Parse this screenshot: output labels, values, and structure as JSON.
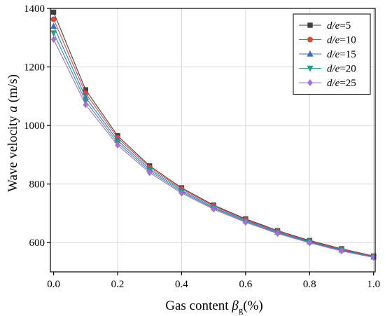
{
  "chart_data": {
    "type": "line",
    "xlabel": {
      "prefix": "Gas content ",
      "symbol": "β",
      "subscript": "g",
      "suffix": "(%)"
    },
    "ylabel": {
      "prefix": "Wave velocity ",
      "symbol": "a",
      "suffix": " (m/s)"
    },
    "xlim": [
      -0.01,
      1.005
    ],
    "ylim": [
      500,
      1400
    ],
    "xticks": [
      0.0,
      0.2,
      0.4,
      0.6,
      0.8,
      1.0
    ],
    "xtick_labels": [
      "0.0",
      "0.2",
      "0.4",
      "0.6",
      "0.8",
      "1.0"
    ],
    "yticks": [
      600,
      800,
      1000,
      1200,
      1400
    ],
    "ytick_labels": [
      "600",
      "800",
      "1000",
      "1200",
      "1400"
    ],
    "grid": true,
    "legend_position": "top-right",
    "x": [
      0.0,
      0.1,
      0.2,
      0.3,
      0.4,
      0.5,
      0.6,
      0.7,
      0.8,
      0.9,
      1.0
    ],
    "series": [
      {
        "name": {
          "var": "d/e",
          "value": "=5"
        },
        "color": "#404040",
        "marker": "square",
        "values": [
          1387,
          1122,
          965,
          862,
          787,
          728,
          681,
          641,
          607,
          579,
          554
        ]
      },
      {
        "name": {
          "var": "d/e",
          "value": "=10"
        },
        "color": "#d9473d",
        "marker": "circle",
        "values": [
          1363,
          1110,
          958,
          857,
          783,
          725,
          678,
          639,
          605,
          577,
          553
        ]
      },
      {
        "name": {
          "var": "d/e",
          "value": "=15"
        },
        "color": "#3c6fc4",
        "marker": "triangle-up",
        "values": [
          1339,
          1096,
          949,
          851,
          778,
          721,
          675,
          636,
          603,
          575,
          551
        ]
      },
      {
        "name": {
          "var": "d/e",
          "value": "=20"
        },
        "color": "#2a9a83",
        "marker": "triangle-down",
        "values": [
          1316,
          1083,
          941,
          845,
          773,
          717,
          672,
          633,
          601,
          573,
          550
        ]
      },
      {
        "name": {
          "var": "d/e",
          "value": "=25"
        },
        "color": "#a96ed6",
        "marker": "diamond",
        "values": [
          1294,
          1071,
          933,
          839,
          769,
          714,
          669,
          631,
          599,
          571,
          549
        ]
      }
    ]
  }
}
